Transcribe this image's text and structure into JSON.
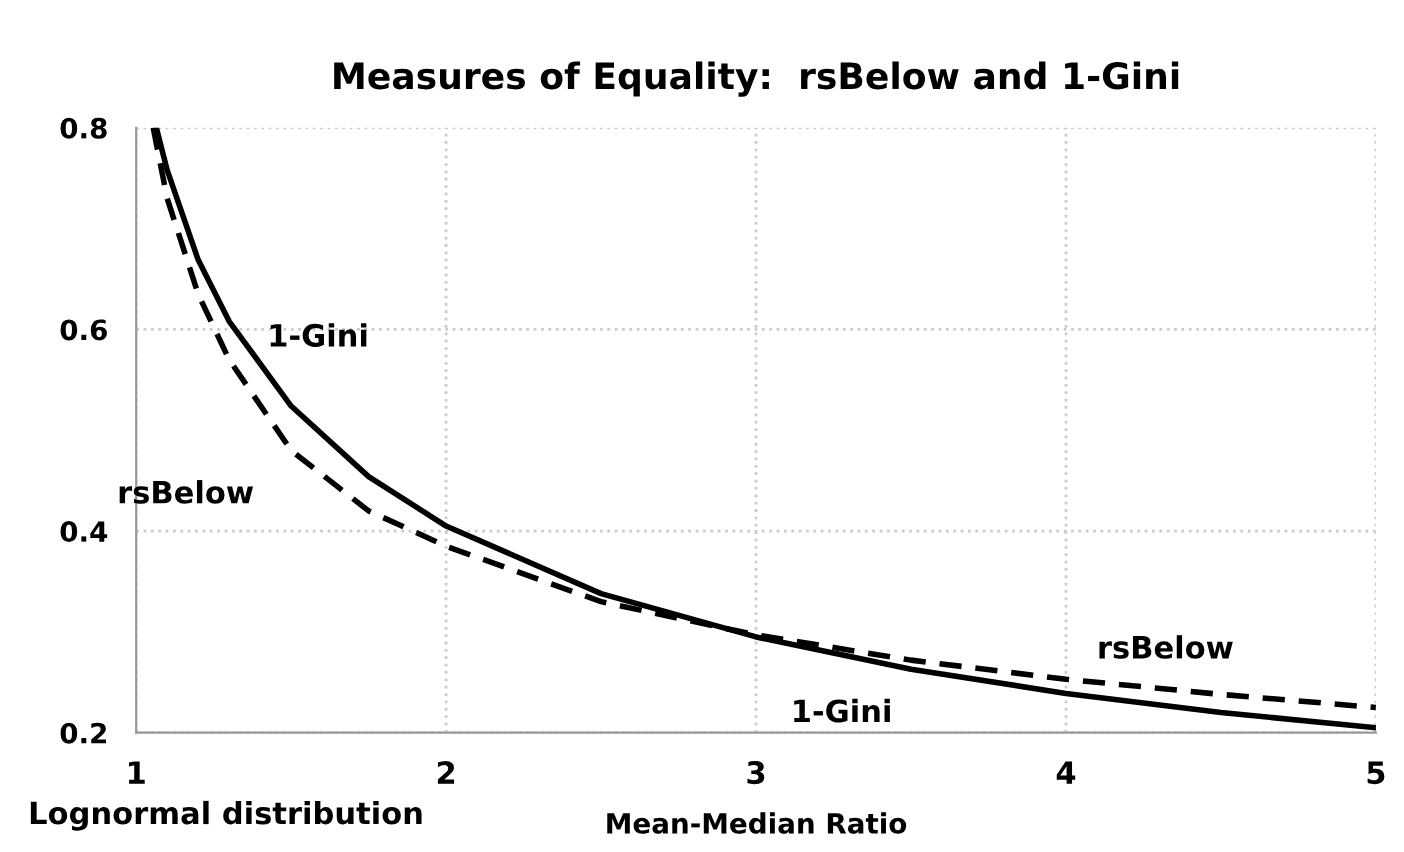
{
  "chart_data": {
    "type": "line",
    "title": "Measures of Equality:  rsBelow and 1-Gini",
    "xlabel": "Mean-Median Ratio",
    "xlim": [
      1,
      5
    ],
    "xticks": [
      1,
      2,
      3,
      4,
      5
    ],
    "ylim": [
      0.2,
      0.8
    ],
    "yticks": [
      {
        "value": 0.2,
        "label": "0.2"
      },
      {
        "value": 0.4,
        "label": "0.4"
      },
      {
        "value": 0.6,
        "label": "0.6"
      },
      {
        "value": 0.8,
        "label": "0.8"
      }
    ],
    "grid": true,
    "legend": false,
    "series": [
      {
        "name": "1-Gini",
        "color": "#000000",
        "line_style": "solid",
        "x": [
          1.065,
          1.1,
          1.2,
          1.3,
          1.5,
          1.75,
          2,
          2.5,
          3,
          3.5,
          4,
          4.5,
          5
        ],
        "values": [
          0.8,
          0.758,
          0.669,
          0.608,
          0.524,
          0.454,
          0.405,
          0.338,
          0.295,
          0.263,
          0.239,
          0.22,
          0.205
        ]
      },
      {
        "name": "rsBelow",
        "color": "#000000",
        "line_style": "dashed",
        "x": [
          1.055,
          1.1,
          1.2,
          1.3,
          1.5,
          1.75,
          2,
          2.5,
          3,
          3.5,
          4,
          4.5,
          5
        ],
        "values": [
          0.8,
          0.73,
          0.635,
          0.57,
          0.48,
          0.42,
          0.385,
          0.33,
          0.297,
          0.272,
          0.253,
          0.238,
          0.225
        ]
      }
    ],
    "annotations": [
      "Lognormal distribution"
    ]
  }
}
